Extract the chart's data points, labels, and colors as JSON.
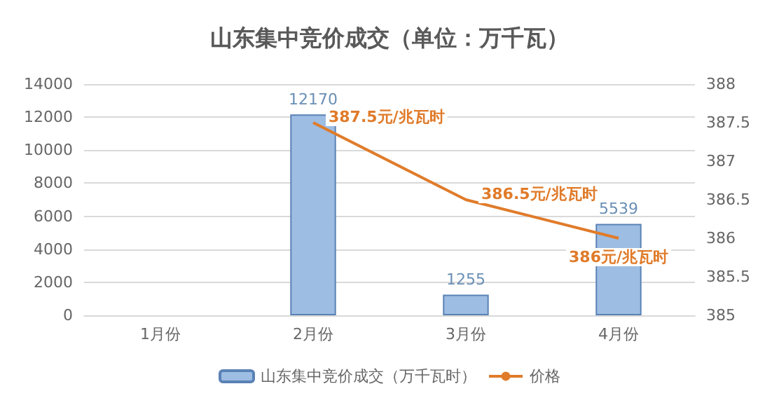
{
  "chart_data": {
    "type": "bar",
    "title": "山东集中竞价成交（单位：万千瓦）",
    "categories": [
      "1月份",
      "2月份",
      "3月份",
      "4月份"
    ],
    "series": [
      {
        "name": "山东集中竞价成交（万千瓦时）",
        "color": "#9dbde3",
        "values": [
          null,
          12170,
          1255,
          5539
        ],
        "value_labels": [
          null,
          "12170",
          "1255",
          "5539"
        ]
      },
      {
        "name": "价格",
        "type": "line",
        "axis": "y2",
        "color": "#e07b2a",
        "values": [
          null,
          387.5,
          386.5,
          386
        ],
        "value_labels": [
          null,
          "387.5元/兆瓦时",
          "386.5元/兆瓦时",
          "386元/兆瓦时"
        ]
      }
    ],
    "ylim": [
      0,
      14000
    ],
    "yticks": [
      0,
      2000,
      4000,
      6000,
      8000,
      10000,
      12000,
      14000
    ],
    "y2lim": [
      385,
      388
    ],
    "y2ticks": [
      385,
      385.5,
      386,
      386.5,
      387,
      387.5,
      388
    ],
    "grid": "y",
    "legend": "bottom",
    "marker": "none"
  }
}
